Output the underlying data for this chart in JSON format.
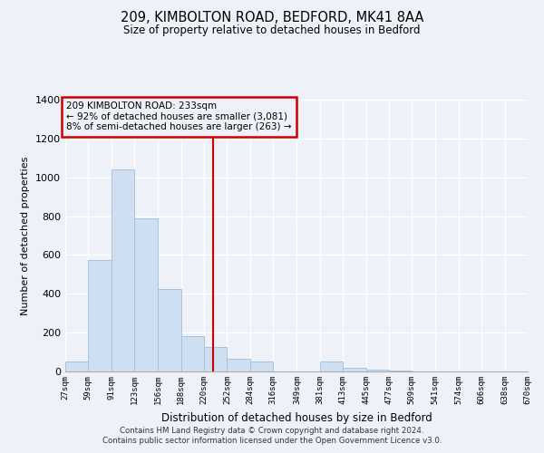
{
  "title": "209, KIMBOLTON ROAD, BEDFORD, MK41 8AA",
  "subtitle": "Size of property relative to detached houses in Bedford",
  "xlabel": "Distribution of detached houses by size in Bedford",
  "ylabel": "Number of detached properties",
  "bar_color": "#cddff0",
  "bar_edge_color": "#a0bedd",
  "bins": [
    27,
    59,
    91,
    123,
    156,
    188,
    220,
    252,
    284,
    316,
    349,
    381,
    413,
    445,
    477,
    509,
    541,
    574,
    606,
    638,
    670
  ],
  "bin_labels": [
    "27sqm",
    "59sqm",
    "91sqm",
    "123sqm",
    "156sqm",
    "188sqm",
    "220sqm",
    "252sqm",
    "284sqm",
    "316sqm",
    "349sqm",
    "381sqm",
    "413sqm",
    "445sqm",
    "477sqm",
    "509sqm",
    "541sqm",
    "574sqm",
    "606sqm",
    "638sqm",
    "670sqm"
  ],
  "bar_heights": [
    50,
    575,
    1040,
    790,
    425,
    180,
    125,
    65,
    50,
    0,
    0,
    50,
    20,
    10,
    5,
    0,
    0,
    0,
    0,
    0
  ],
  "vline_x": 233,
  "vline_color": "#cc0000",
  "annotation_line1": "209 KIMBOLTON ROAD: 233sqm",
  "annotation_line2": "← 92% of detached houses are smaller (3,081)",
  "annotation_line3": "8% of semi-detached houses are larger (263) →",
  "ylim": [
    0,
    1400
  ],
  "yticks": [
    0,
    200,
    400,
    600,
    800,
    1000,
    1200,
    1400
  ],
  "footnote1": "Contains HM Land Registry data © Crown copyright and database right 2024.",
  "footnote2": "Contains public sector information licensed under the Open Government Licence v3.0.",
  "background_color": "#eef2f8"
}
